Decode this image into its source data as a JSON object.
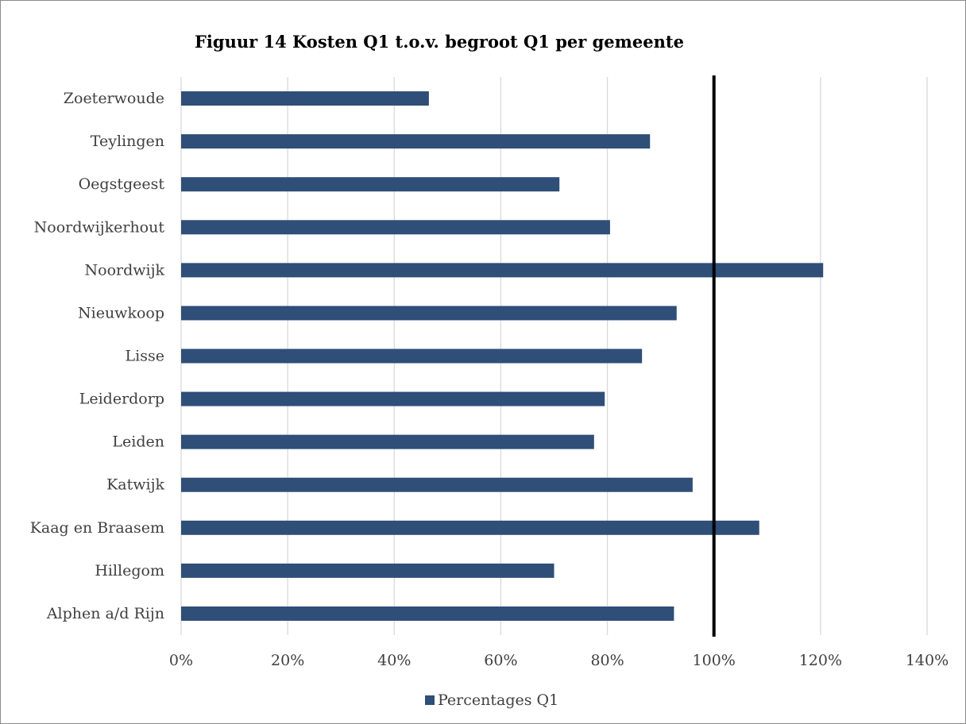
{
  "chart_data": {
    "type": "bar",
    "orientation": "horizontal",
    "title": "Figuur 14 Kosten Q1 t.o.v. begroot Q1 per gemeente",
    "categories": [
      "Zoeterwoude",
      "Teylingen",
      "Oegstgeest",
      "Noordwijkerhout",
      "Noordwijk",
      "Nieuwkoop",
      "Lisse",
      "Leiderdorp",
      "Leiden",
      "Katwijk",
      "Kaag en Braasem",
      "Hillegom",
      "Alphen a/d Rijn"
    ],
    "series": [
      {
        "name": "Percentages Q1",
        "values": [
          0.465,
          0.88,
          0.71,
          0.805,
          1.205,
          0.93,
          0.865,
          0.795,
          0.775,
          0.96,
          1.085,
          0.7,
          0.925
        ],
        "color": "#2f4e78"
      }
    ],
    "xlim": [
      0,
      1.4
    ],
    "xticks": [
      0,
      0.2,
      0.4,
      0.6,
      0.8,
      1.0,
      1.2,
      1.4
    ],
    "xtick_labels": [
      "0%",
      "20%",
      "40%",
      "60%",
      "80%",
      "100%",
      "120%",
      "140%"
    ],
    "reference_line": {
      "x": 1.0,
      "color": "#000000"
    },
    "grid": "vertical",
    "legend_position": "bottom"
  }
}
